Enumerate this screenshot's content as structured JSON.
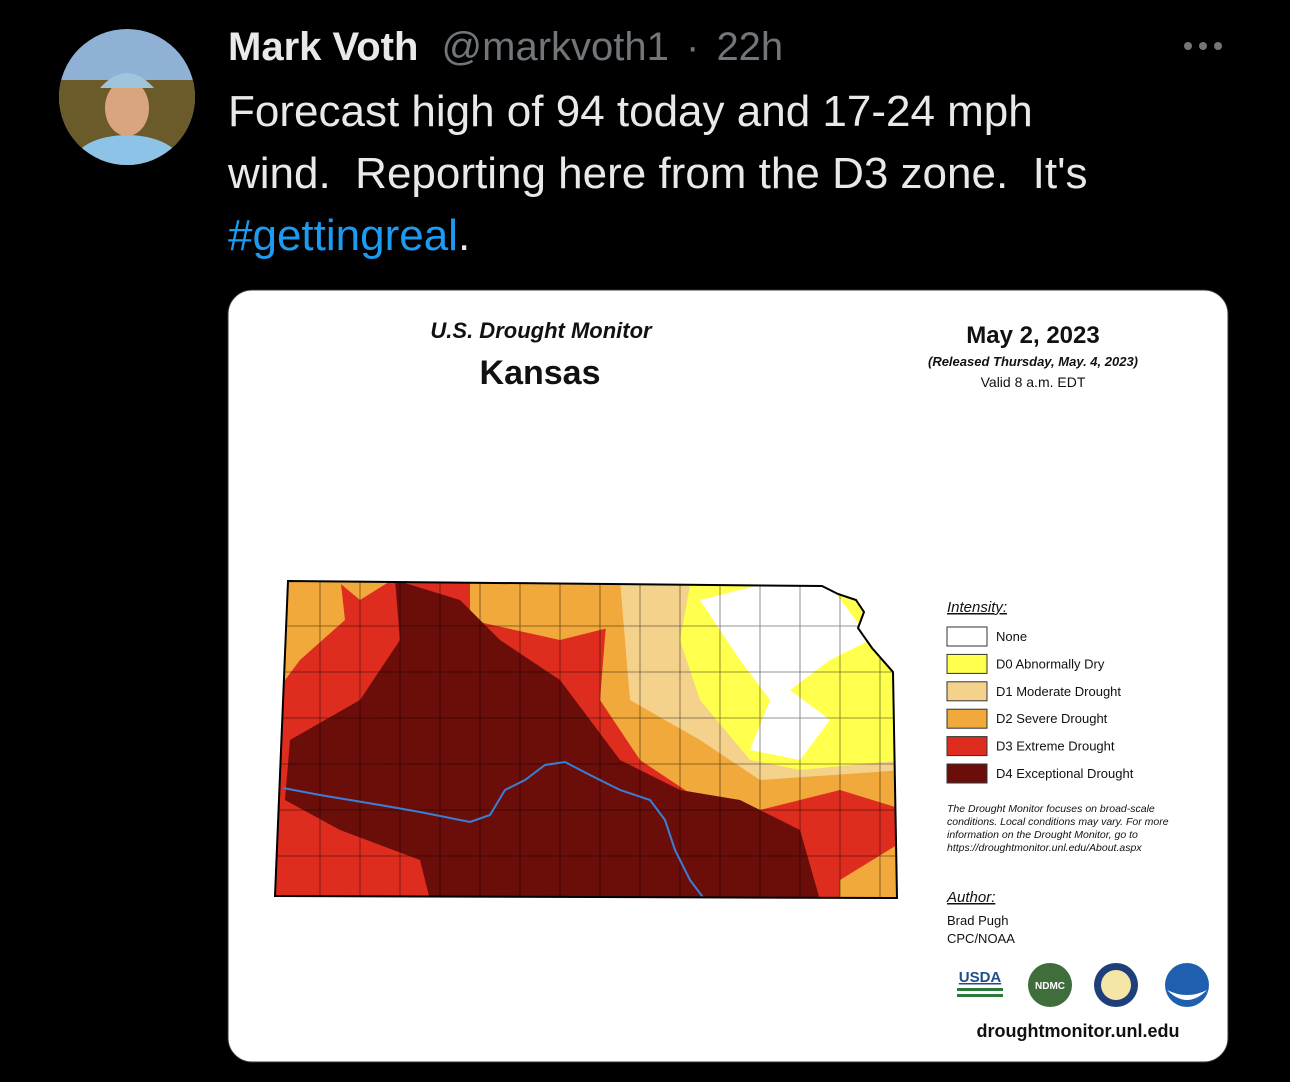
{
  "tweet": {
    "author": "Mark Voth",
    "handle": "@markvoth1",
    "separator": "·",
    "time": "22h",
    "text_lines": [
      "Forecast high of 94 today and 17-24 mph",
      "wind.  Reporting here from the D3 zone.  It's"
    ],
    "hashtag": "#gettingreal",
    "text_end": "."
  },
  "image": {
    "title": "U.S. Drought Monitor",
    "state": "Kansas",
    "date": "May 2, 2023",
    "released": "(Released Thursday, May. 4, 2023)",
    "valid": "Valid 8 a.m. EDT",
    "legend_title": "Intensity:",
    "legend": [
      {
        "label": "None",
        "color": "#ffffff"
      },
      {
        "label": "D0 Abnormally Dry",
        "color": "#ffff4d"
      },
      {
        "label": "D1 Moderate Drought",
        "color": "#f5d28c"
      },
      {
        "label": "D2 Severe Drought",
        "color": "#f2a93b"
      },
      {
        "label": "D3 Extreme Drought",
        "color": "#de2d1f"
      },
      {
        "label": "D4 Exceptional Drought",
        "color": "#6b0e0a"
      }
    ],
    "note_lines": [
      "The Drought Monitor focuses on broad-scale",
      "conditions. Local conditions may vary. For more",
      "information on the Drought Monitor, go to",
      "https://droughtmonitor.unl.edu/About.aspx"
    ],
    "author_title": "Author:",
    "author_lines": [
      "Brad Pugh",
      "CPC/NOAA"
    ],
    "logos": [
      "USDA",
      "NDMC"
    ],
    "url": "droughtmonitor.unl.edu"
  }
}
